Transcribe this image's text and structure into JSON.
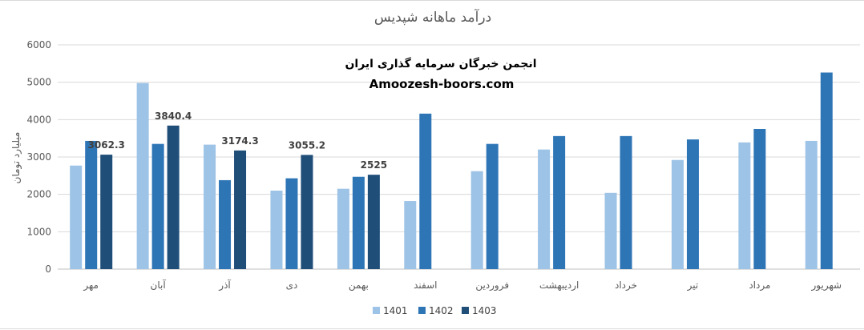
{
  "chart_data": {
    "type": "bar",
    "title": "درآمد ماهانه شپدیس",
    "ylabel": "میلیارد تومان",
    "xlabel": "",
    "ylim": [
      0,
      6000
    ],
    "yticks": [
      0,
      1000,
      2000,
      3000,
      4000,
      5000,
      6000
    ],
    "grid": true,
    "legend_position": "bottom",
    "categories": [
      "مهر",
      "آبان",
      "آذر",
      "دی",
      "بهمن",
      "اسفند",
      "فروردین",
      "اردیبهشت",
      "خرداد",
      "تیر",
      "مرداد",
      "شهریور"
    ],
    "series": [
      {
        "name": "1401",
        "color": "#9dc3e6",
        "values": [
          2770,
          4980,
          3330,
          2100,
          2150,
          1820,
          2620,
          3200,
          2040,
          2920,
          3390,
          3430
        ]
      },
      {
        "name": "1402",
        "color": "#2e75b6",
        "values": [
          3430,
          3350,
          2380,
          2430,
          2470,
          4160,
          3350,
          3560,
          3560,
          3470,
          3750,
          5260
        ]
      },
      {
        "name": "1403",
        "color": "#1f4e79",
        "values": [
          3062.3,
          3840.4,
          3174.3,
          3055.2,
          2525,
          null,
          null,
          null,
          null,
          null,
          null,
          null
        ]
      }
    ],
    "data_labels": [
      "3062.3",
      "3840.4",
      "3174.3",
      "3055.2",
      "2525"
    ],
    "annotations": [
      "انجمن خبرگان سرمایه گذاری ایران",
      "Amoozesh-boors.com"
    ]
  }
}
